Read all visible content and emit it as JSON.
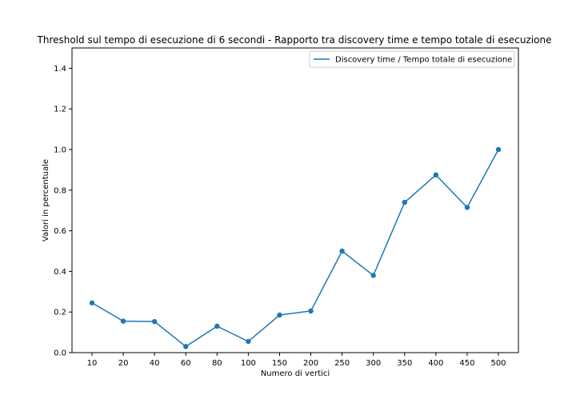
{
  "chart_data": {
    "type": "line",
    "title": "Threshold sul tempo di esecuzione di 6 secondi - Rapporto tra discovery time e tempo totale di esecuzione",
    "xlabel": "Numero di vertici",
    "ylabel": "Valori in percentuale",
    "categories": [
      "10",
      "20",
      "40",
      "60",
      "80",
      "100",
      "150",
      "200",
      "250",
      "300",
      "350",
      "400",
      "450",
      "500"
    ],
    "series": [
      {
        "name": "Discovery time / Tempo totale di esecuzione",
        "color": "#1f77b4",
        "values": [
          0.245,
          0.155,
          0.153,
          0.03,
          0.13,
          0.055,
          0.185,
          0.205,
          0.5,
          0.38,
          0.74,
          0.875,
          0.715,
          1.0
        ]
      }
    ],
    "ylim": [
      0,
      1.5
    ],
    "yticks": [
      "0.0",
      "0.2",
      "0.4",
      "0.6",
      "0.8",
      "1.0",
      "1.2",
      "1.4"
    ],
    "grid": false,
    "legend_position": "upper-right"
  }
}
